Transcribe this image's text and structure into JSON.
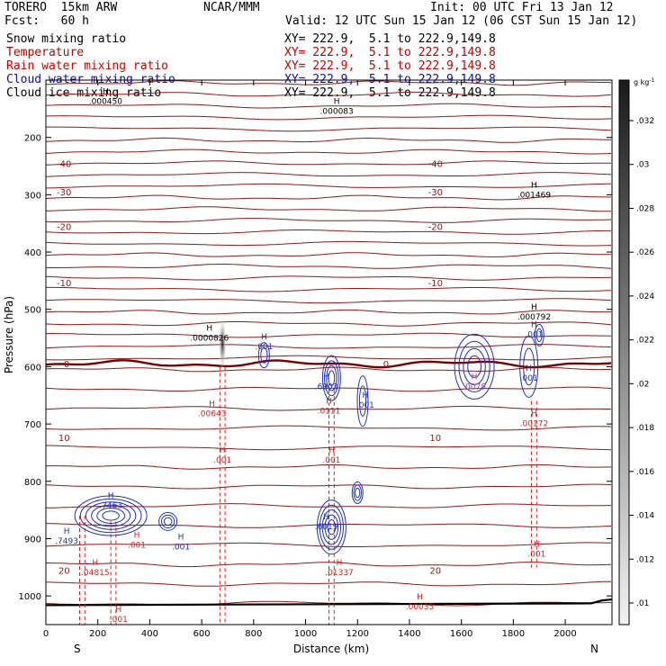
{
  "header": {
    "model": "TORERO  15km ARW",
    "org": "NCAR/MMM",
    "init": "Init: 00 UTC Fri 13 Jan 12",
    "fcst": "Fcst:   60 h",
    "valid": "Valid: 12 UTC Sun 15 Jan 12 (06 CST Sun 15 Jan 12)"
  },
  "legend": [
    {
      "label": "Snow mixing ratio",
      "xy": "XY= 222.9,  5.1 to 222.9,149.8",
      "color": "#000000"
    },
    {
      "label": "Temperature",
      "xy": "XY= 222.9,  5.1 to 222.9,149.8",
      "color": "#c00000"
    },
    {
      "label": "Rain water mixing ratio",
      "xy": "XY= 222.9,  5.1 to 222.9,149.8",
      "color": "#d00000"
    },
    {
      "label": "Cloud water mixing ratio",
      "xy": "XY= 222.9,  5.1 to 222.9,149.8",
      "color": "#1010b0"
    },
    {
      "label": "Cloud ice mixing ratio",
      "xy": "XY= 222.9,  5.1 to 222.9,149.8",
      "color": "#000000"
    }
  ],
  "colors": {
    "temp": "#8b1a1a",
    "zero": "#7a0000",
    "rain": "#e02020",
    "cloud": "#2030c0",
    "ice": "#000000"
  },
  "chart_data": {
    "type": "cross-section",
    "xlabel": "Distance (km)",
    "ylabel": "Pressure (hPa)",
    "xlim": [
      0,
      2180
    ],
    "ylim": [
      1050,
      100
    ],
    "xticks": [
      0,
      200,
      400,
      600,
      800,
      1000,
      1200,
      1400,
      1600,
      1800,
      2000
    ],
    "yticks": [
      200,
      300,
      400,
      500,
      600,
      700,
      800,
      900,
      1000
    ],
    "endpoints": {
      "left": "S",
      "right": "N"
    },
    "colorbar": {
      "unit": "g kg",
      "unit_exp": "-1",
      "ticks": [
        ".032",
        ".03",
        ".028",
        ".026",
        ".024",
        ".022",
        ".02",
        ".018",
        ".016",
        ".014",
        ".012",
        ".01"
      ]
    },
    "temperature_contours": [
      {
        "label": "-40",
        "p": 245
      },
      {
        "label": "-30",
        "p": 295
      },
      {
        "label": "-20",
        "p": 355
      },
      {
        "label": "-10",
        "p": 453
      },
      {
        "label": "0",
        "p": 595
      },
      {
        "label": "10",
        "p": 723
      },
      {
        "label": "20",
        "p": 955
      }
    ],
    "annotations": [
      {
        "text": ".000450",
        "x": 230,
        "p": 140,
        "color": "#000000"
      },
      {
        "text": ".000083",
        "x": 1120,
        "p": 157,
        "color": "#000000"
      },
      {
        "text": ".001469",
        "x": 1880,
        "p": 303,
        "color": "#000000"
      },
      {
        "text": ".000792",
        "x": 1880,
        "p": 516,
        "color": "#000000"
      },
      {
        "text": ".0000826",
        "x": 630,
        "p": 553,
        "color": "#000000"
      },
      {
        "text": ".001",
        "x": 840,
        "p": 568,
        "color": "#2030c0"
      },
      {
        "text": ".001",
        "x": 1880,
        "p": 547,
        "color": "#2030c0"
      },
      {
        "text": ".001",
        "x": 1860,
        "p": 623,
        "color": "#2030c0"
      },
      {
        "text": ".6903",
        "x": 1080,
        "p": 638,
        "color": "#2030c0"
      },
      {
        "text": ".001",
        "x": 1230,
        "p": 670,
        "color": "#2030c0"
      },
      {
        "text": ".0111",
        "x": 1090,
        "p": 680,
        "color": "#e02020"
      },
      {
        "text": ".00643",
        "x": 640,
        "p": 685,
        "color": "#e02020"
      },
      {
        "text": ".001",
        "x": 680,
        "p": 766,
        "color": "#e02020"
      },
      {
        "text": ".0078",
        "x": 1650,
        "p": 638,
        "color": "#a040a0"
      },
      {
        "text": ".00172",
        "x": 1880,
        "p": 702,
        "color": "#e02020"
      },
      {
        "text": ".001",
        "x": 1100,
        "p": 766,
        "color": "#e02020"
      },
      {
        "text": ".7463",
        "x": 250,
        "p": 845,
        "color": "#2030c0"
      },
      {
        "text": ".7493",
        "x": 80,
        "p": 907,
        "color": "#2030c0"
      },
      {
        "text": ".001",
        "x": 350,
        "p": 914,
        "color": "#e02020"
      },
      {
        "text": ".001",
        "x": 520,
        "p": 917,
        "color": "#2030c0"
      },
      {
        "text": ".04815",
        "x": 190,
        "p": 962,
        "color": "#e02020"
      },
      {
        "text": ".001",
        "x": 280,
        "p": 1044,
        "color": "#e02020"
      },
      {
        "text": ".6019",
        "x": 1080,
        "p": 882,
        "color": "#2030c0"
      },
      {
        "text": ".01337",
        "x": 1130,
        "p": 962,
        "color": "#e02020"
      },
      {
        "text": ".00035",
        "x": 1440,
        "p": 1022,
        "color": "#e02020"
      },
      {
        "text": ".001",
        "x": 1890,
        "p": 930,
        "color": "#e02020"
      }
    ]
  }
}
